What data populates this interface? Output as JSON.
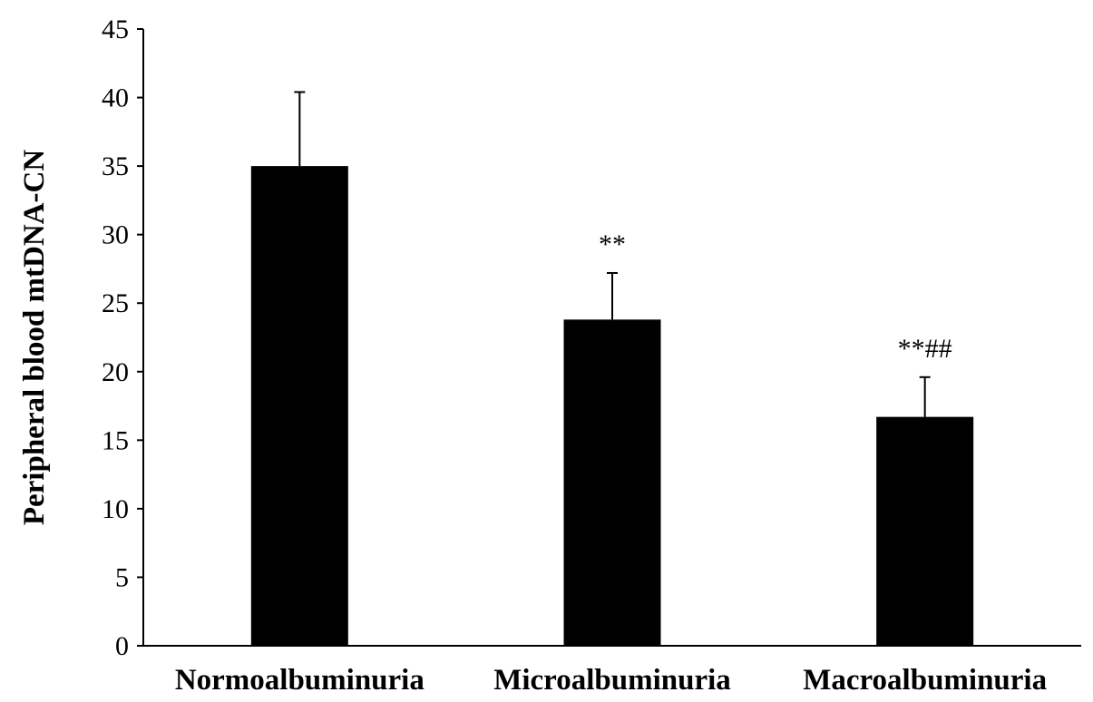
{
  "chart_data": {
    "type": "bar",
    "title": "",
    "xlabel": "",
    "ylabel": "Peripheral blood mtDNA-CN",
    "ylim": [
      0,
      45
    ],
    "yticks": [
      0,
      5,
      10,
      15,
      20,
      25,
      30,
      35,
      40,
      45
    ],
    "grid": false,
    "categories": [
      "Normoalbuminuria",
      "Microalbuminuria",
      "Macroalbuminuria"
    ],
    "values": [
      35.0,
      23.8,
      16.7
    ],
    "error_upper": [
      40.4,
      27.2,
      19.6
    ],
    "annotations": [
      "",
      "**",
      "**##"
    ],
    "bar_color": "#000000"
  }
}
